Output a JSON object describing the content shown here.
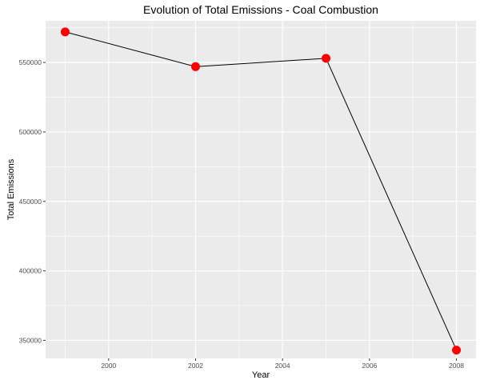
{
  "chart_data": {
    "type": "line",
    "title": "Evolution of Total Emissions - Coal Combustion",
    "xlabel": "Year",
    "ylabel": "Total Emissions",
    "x": [
      1999,
      2002,
      2005,
      2008
    ],
    "series": [
      {
        "values": [
          572000,
          547000,
          553000,
          343000
        ]
      }
    ],
    "xlim": [
      1998.55,
      2008.45
    ],
    "ylim": [
      337000,
      580000
    ],
    "x_ticks": [
      2000,
      2002,
      2004,
      2006,
      2008
    ],
    "y_ticks": [
      350000,
      400000,
      450000,
      500000,
      550000
    ],
    "x_tick_labels": [
      "2000",
      "2002",
      "2004",
      "2006",
      "2008"
    ],
    "y_tick_labels": [
      "350000",
      "400000",
      "450000",
      "500000",
      "550000"
    ],
    "grid": true,
    "legend": "none",
    "colors": {
      "panel_background": "#ebebeb",
      "grid_major": "#ffffff",
      "line": "#000000",
      "points": "#ff0000"
    }
  }
}
